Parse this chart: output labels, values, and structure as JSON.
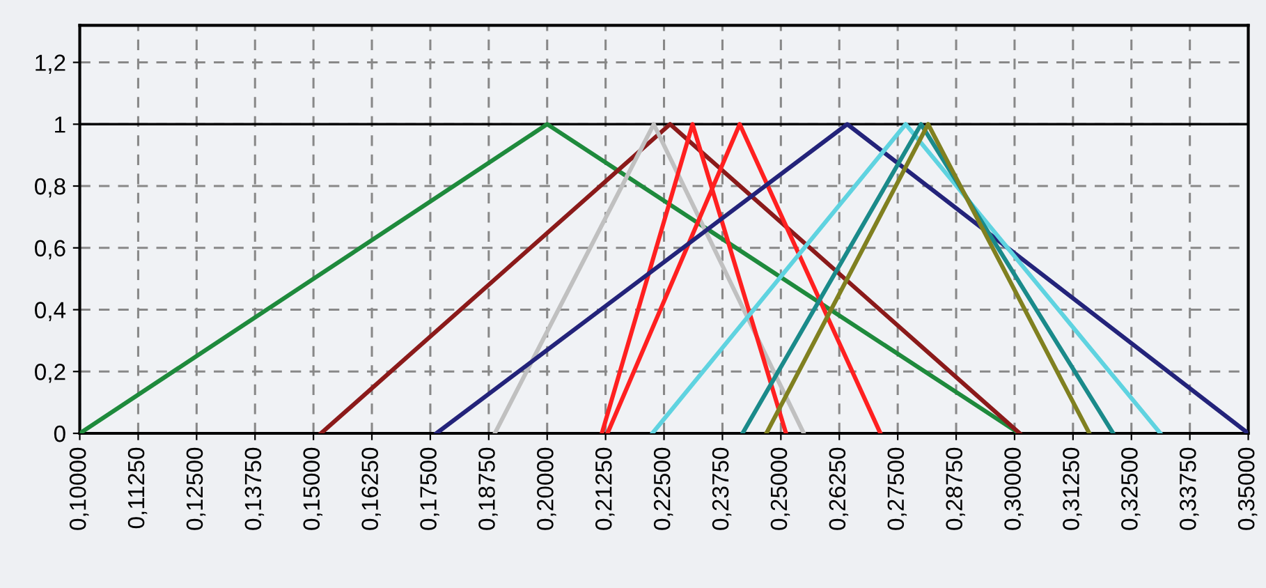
{
  "chart_data": {
    "type": "line",
    "xlim": [
      0.1,
      0.35
    ],
    "ylim": [
      0,
      1.32
    ],
    "xticks": [
      {
        "value": 0.1,
        "label": "0,10000"
      },
      {
        "value": 0.1125,
        "label": "0,11250"
      },
      {
        "value": 0.125,
        "label": "0,12500"
      },
      {
        "value": 0.1375,
        "label": "0,13750"
      },
      {
        "value": 0.15,
        "label": "0,15000"
      },
      {
        "value": 0.1625,
        "label": "0,16250"
      },
      {
        "value": 0.175,
        "label": "0,17500"
      },
      {
        "value": 0.1875,
        "label": "0,18750"
      },
      {
        "value": 0.2,
        "label": "0,20000"
      },
      {
        "value": 0.2125,
        "label": "0,21250"
      },
      {
        "value": 0.225,
        "label": "0,22500"
      },
      {
        "value": 0.2375,
        "label": "0,23750"
      },
      {
        "value": 0.25,
        "label": "0,25000"
      },
      {
        "value": 0.2625,
        "label": "0,26250"
      },
      {
        "value": 0.275,
        "label": "0,27500"
      },
      {
        "value": 0.2875,
        "label": "0,28750"
      },
      {
        "value": 0.3,
        "label": "0,30000"
      },
      {
        "value": 0.3125,
        "label": "0,31250"
      },
      {
        "value": 0.325,
        "label": "0,32500"
      },
      {
        "value": 0.3375,
        "label": "0,33750"
      },
      {
        "value": 0.35,
        "label": "0,35000"
      }
    ],
    "yticks": [
      0,
      {
        "value": 0.2,
        "label": "0,2"
      },
      {
        "value": 0.4,
        "label": "0,4"
      },
      {
        "value": 0.6,
        "label": "0,6"
      },
      {
        "value": 0.8,
        "label": "0,8"
      },
      1,
      {
        "value": 1.2,
        "label": "1,2"
      }
    ],
    "grid": true,
    "line_style": "solid",
    "marker": "none",
    "ref_lines": [
      {
        "axis": "y",
        "value": 1,
        "color": "#000000",
        "line_style": "solid"
      }
    ],
    "series": [
      {
        "color": "#1e8a3c",
        "x": [
          0.1,
          0.2,
          0.301
        ],
        "values": [
          0,
          1,
          0
        ]
      },
      {
        "color": "#8b1a1a",
        "x": [
          0.1516,
          0.2263,
          0.3011
        ],
        "values": [
          0,
          1,
          0
        ]
      },
      {
        "color": "#c0c0c0",
        "x": [
          0.1888,
          0.2228,
          0.2549
        ],
        "values": [
          0,
          1,
          0
        ]
      },
      {
        "color": "#ff2020",
        "x": [
          0.2117,
          0.2311,
          0.2511
        ],
        "values": [
          0,
          1,
          0
        ]
      },
      {
        "color": "#ff2020",
        "x": [
          0.2129,
          0.2412,
          0.2713
        ],
        "values": [
          0,
          1,
          0
        ]
      },
      {
        "color": "#23237a",
        "x": [
          0.1763,
          0.2642,
          0.35
        ],
        "values": [
          0,
          1,
          0
        ]
      },
      {
        "color": "#5fd3e0",
        "x": [
          0.2225,
          0.2767,
          0.3312
        ],
        "values": [
          0,
          1,
          0
        ]
      },
      {
        "color": "#1a8a8a",
        "x": [
          0.2418,
          0.28,
          0.3211
        ],
        "values": [
          0,
          1,
          0
        ]
      },
      {
        "color": "#808020",
        "x": [
          0.2469,
          0.2815,
          0.316
        ],
        "values": [
          0,
          1,
          0
        ]
      }
    ]
  }
}
